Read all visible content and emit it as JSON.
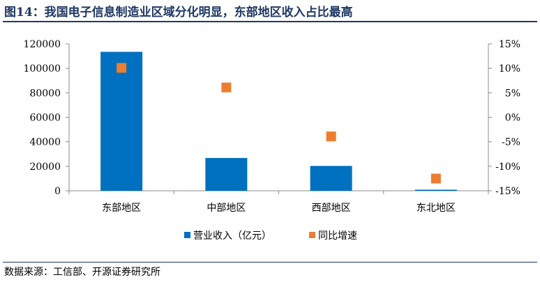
{
  "figure": {
    "title": "图14：我国电子信息制造业区域分化明显，东部地区收入占比最高",
    "source": "数据来源：工信部、开源证券研究所"
  },
  "chart_data": {
    "type": "bar",
    "title": "图14：我国电子信息制造业区域分化明显，东部地区收入占比最高",
    "categories": [
      "东部地区",
      "中部地区",
      "西部地区",
      "东北地区"
    ],
    "series": [
      {
        "name": "营业收入（亿元）",
        "kind": "bar",
        "axis": "left",
        "color": "#0070c0",
        "values": [
          113500,
          26800,
          20300,
          900
        ]
      },
      {
        "name": "同比增速",
        "kind": "scatter",
        "axis": "right",
        "color": "#ed7d31",
        "values": [
          10.1,
          6.1,
          -3.9,
          -12.5
        ]
      }
    ],
    "y_left": {
      "lim": [
        0,
        120000
      ],
      "ticks": [
        0,
        20000,
        40000,
        60000,
        80000,
        100000,
        120000
      ],
      "tick_labels": [
        "0",
        "20000",
        "40000",
        "60000",
        "80000",
        "100000",
        "120000"
      ]
    },
    "y_right": {
      "lim": [
        -15,
        15
      ],
      "ticks": [
        -15,
        -10,
        -5,
        0,
        5,
        10,
        15
      ],
      "tick_labels": [
        "-15%",
        "-10%",
        "-5%",
        "0%",
        "5%",
        "10%",
        "15%"
      ]
    },
    "legend_position": "bottom-center",
    "grid": false
  }
}
